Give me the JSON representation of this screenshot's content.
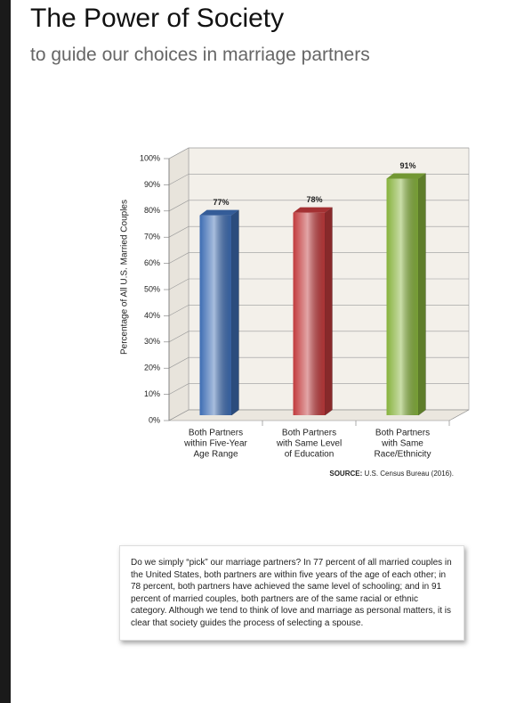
{
  "header": {
    "title": "The Power of Society",
    "subtitle": "to guide our choices in marriage partners"
  },
  "chart_data": {
    "type": "bar3d",
    "categories": [
      [
        "Both Partners",
        "within Five-Year",
        "Age Range"
      ],
      [
        "Both Partners",
        "with Same Level",
        "of Education"
      ],
      [
        "Both Partners",
        "with Same",
        "Race/Ethnicity"
      ]
    ],
    "values": [
      77,
      78,
      91
    ],
    "value_labels": [
      "77%",
      "78%",
      "91%"
    ],
    "colors": [
      "#3d6cb3",
      "#c13a3c",
      "#86b23c"
    ],
    "ylabel": "Percentage of All U.S. Married Couples",
    "ylim": [
      0,
      100
    ],
    "yticks": [
      {
        "value": 0,
        "label": "0%"
      },
      {
        "value": 10,
        "label": "10%"
      },
      {
        "value": 20,
        "label": "20%"
      },
      {
        "value": 30,
        "label": "30%"
      },
      {
        "value": 40,
        "label": "40%"
      },
      {
        "value": 50,
        "label": "50%"
      },
      {
        "value": 60,
        "label": "60%"
      },
      {
        "value": 70,
        "label": "70%"
      },
      {
        "value": 80,
        "label": "80%"
      },
      {
        "value": 90,
        "label": "90%"
      },
      {
        "value": 100,
        "label": "100%"
      }
    ],
    "grid": true,
    "source": {
      "label": "SOURCE:",
      "text": "U.S. Census Bureau (2016)."
    }
  },
  "note": "Do we simply “pick” our marriage partners? In 77 percent of all married couples in the United States, both partners are within five years of the age of each other; in 78 percent, both partners have achieved the same level of schooling; and in 91 percent of married couples, both partners are of the same racial or ethnic category. Although we tend to think of love and marriage as personal matters, it is clear that society guides the process of selecting a spouse."
}
